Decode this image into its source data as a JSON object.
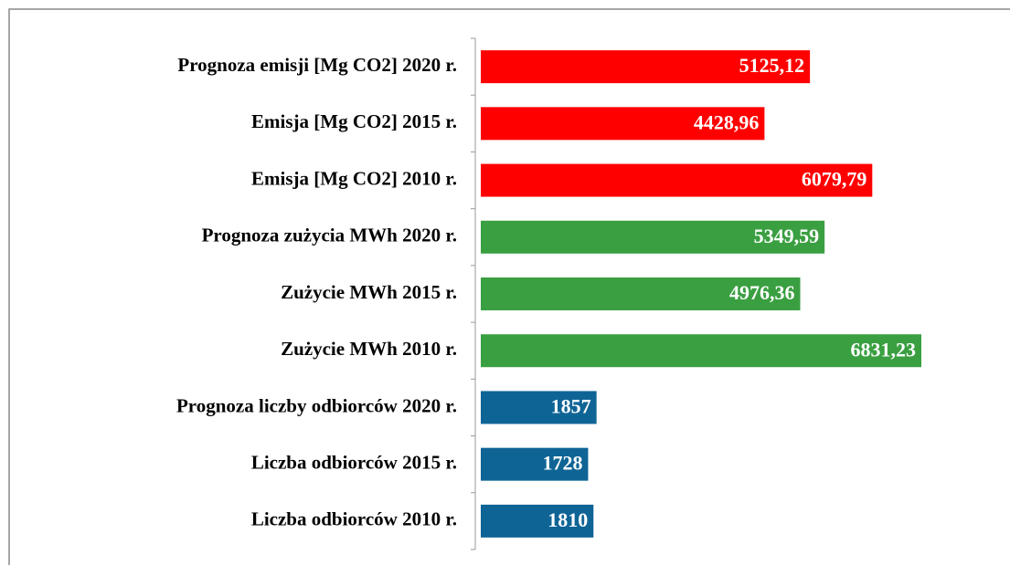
{
  "chart_data": {
    "type": "bar",
    "orientation": "horizontal",
    "categories": [
      "Prognoza emisji [Mg CO2] 2020 r.",
      "Emisja [Mg CO2] 2015 r.",
      "Emisja [Mg CO2] 2010 r.",
      "Prognoza zużycia MWh 2020 r.",
      "Zużycie MWh 2015 r.",
      "Zużycie MWh 2010 r.",
      "Prognoza liczby odbiorców 2020 r.",
      "Liczba odbiorców 2015 r.",
      "Liczba odbiorców 2010 r."
    ],
    "values": [
      5125.12,
      4428.96,
      6079.79,
      5349.59,
      4976.36,
      6831.23,
      1857,
      1728,
      1810
    ],
    "value_labels": [
      "5125,12",
      "4428,96",
      "6079,79",
      "5349,59",
      "4976,36",
      "6831,23",
      "1857",
      "1728",
      "1810"
    ],
    "colors": [
      "#ff0000",
      "#ff0000",
      "#ff0000",
      "#3a9f41",
      "#3a9f41",
      "#3a9f41",
      "#0f6496",
      "#0f6496",
      "#0f6496"
    ]
  }
}
